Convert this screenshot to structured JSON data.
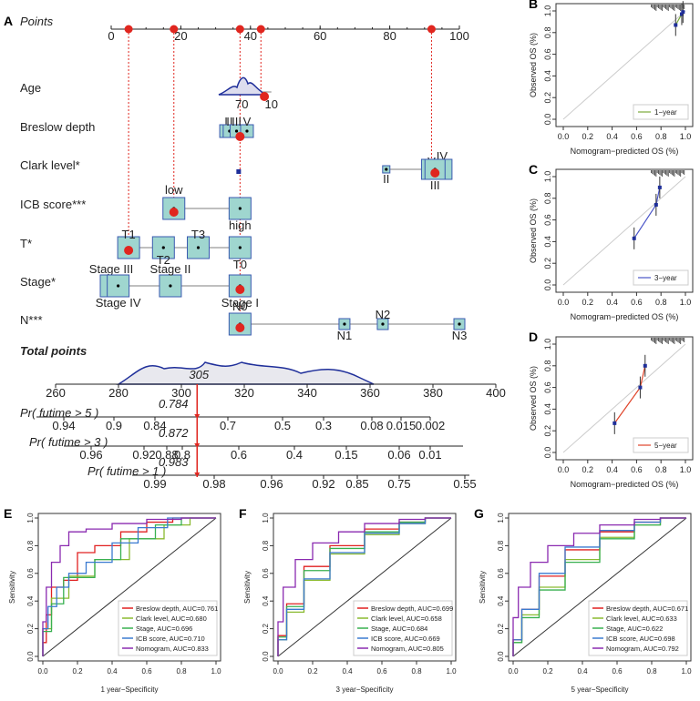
{
  "chart_data": [
    {
      "panel": "A",
      "type": "nomogram",
      "points_label": "Points",
      "points_scale": {
        "ticks": [
          0,
          20,
          40,
          60,
          80,
          100
        ]
      },
      "variables": [
        {
          "name": "Age",
          "ticks": [
            {
              "label": "70",
              "pt": 37.5
            },
            {
              "label": "10",
              "pt": 46
            }
          ]
        },
        {
          "name": "Breslow depth",
          "ticks": [
            {
              "label": "I",
              "pt": 33
            },
            {
              "label": "II",
              "pt": 34
            },
            {
              "label": "III",
              "pt": 36
            },
            {
              "label": "V",
              "pt": 39
            }
          ]
        },
        {
          "name": "Clark level*",
          "ticks": [
            {
              "label": "II",
              "pt": 79
            },
            {
              "label": "V",
              "pt": 92
            },
            {
              "label": "IV",
              "pt": 95
            },
            {
              "label": "III",
              "pt": 93
            }
          ]
        },
        {
          "name": "ICB score***",
          "ticks": [
            {
              "label": "low",
              "pt": 18
            },
            {
              "label": "high",
              "pt": 37
            }
          ]
        },
        {
          "name": "T*",
          "ticks": [
            {
              "label": "T1",
              "pt": 5
            },
            {
              "label": "T2",
              "pt": 15
            },
            {
              "label": "T3",
              "pt": 25
            },
            {
              "label": "T0",
              "pt": 37
            }
          ]
        },
        {
          "name": "Stage*",
          "ticks": [
            {
              "label": "Stage III",
              "pt": 0
            },
            {
              "label": "Stage IV",
              "pt": 2
            },
            {
              "label": "Stage II",
              "pt": 17
            },
            {
              "label": "Stage I",
              "pt": 37
            }
          ]
        },
        {
          "name": "N***",
          "ticks": [
            {
              "label": "N0",
              "pt": 37
            },
            {
              "label": "N1",
              "pt": 67
            },
            {
              "label": "N2",
              "pt": 78
            },
            {
              "label": "N3",
              "pt": 100
            }
          ]
        }
      ],
      "total_points_label": "Total points",
      "total_points": {
        "ticks": [
          260,
          280,
          300,
          320,
          340,
          360,
          380,
          400
        ],
        "value": 305,
        "value_label": "305"
      },
      "probabilities": [
        {
          "label": "Pr( futime > 5 )",
          "ticks": [
            "0.94",
            "0.9",
            "0.84",
            "0.7",
            "0.5",
            "0.3",
            "0.08",
            "0.015",
            "0.002"
          ],
          "value_label": "0.784"
        },
        {
          "label": "Pr( futime > 3 )",
          "ticks": [
            "0.96",
            "0.92",
            "0.88",
            "0.8",
            "0.6",
            "0.4",
            "0.15",
            "0.06",
            "0.01"
          ],
          "value_label": "0.872"
        },
        {
          "label": "Pr( futime > 1 )",
          "ticks": [
            "0.99",
            "0.98",
            "0.96",
            "0.92",
            "0.85",
            "0.75",
            "0.55"
          ],
          "value_label": "0.983"
        }
      ]
    },
    {
      "panel": "B",
      "type": "calibration",
      "xlabel": "Nomogram−predicted OS (%)",
      "ylabel": "Observed OS (%)",
      "legend": "1−year",
      "xlim": [
        0,
        1
      ],
      "ylim": [
        0,
        1
      ],
      "ticks": [
        "0.0",
        "0.2",
        "0.4",
        "0.6",
        "0.8",
        "1.0"
      ],
      "points": [
        [
          0.92,
          0.87
        ],
        [
          0.97,
          0.97
        ],
        [
          0.98,
          0.99
        ]
      ],
      "color": "#7aaa3a"
    },
    {
      "panel": "C",
      "type": "calibration",
      "xlabel": "Nomogram−predicted OS (%)",
      "ylabel": "Observed OS (%)",
      "legend": "3−year",
      "xlim": [
        0,
        1
      ],
      "ylim": [
        0,
        1
      ],
      "ticks": [
        "0.0",
        "0.2",
        "0.4",
        "0.6",
        "0.8",
        "1.0"
      ],
      "points": [
        [
          0.58,
          0.43
        ],
        [
          0.76,
          0.74
        ],
        [
          0.79,
          0.9
        ]
      ],
      "color": "#4a55c8"
    },
    {
      "panel": "D",
      "type": "calibration",
      "xlabel": "Nomogram−predicted OS (%)",
      "ylabel": "Observed OS (%)",
      "legend": "5−year",
      "xlim": [
        0,
        1
      ],
      "ylim": [
        0,
        1
      ],
      "ticks": [
        "0.0",
        "0.2",
        "0.4",
        "0.6",
        "0.8",
        "1.0"
      ],
      "points": [
        [
          0.42,
          0.27
        ],
        [
          0.63,
          0.6
        ],
        [
          0.67,
          0.8
        ]
      ],
      "color": "#e0442a"
    },
    {
      "panel": "E",
      "type": "roc",
      "xlabel": "1 year−Specificity",
      "ylabel": "Sensitivity",
      "ticks": [
        "0.0",
        "0.2",
        "0.4",
        "0.6",
        "0.8",
        "1.0"
      ],
      "series": [
        {
          "name": "Breslow depth, AUC=0.761",
          "color": "#e02020",
          "pts": [
            [
              0,
              0
            ],
            [
              0.02,
              0.1
            ],
            [
              0.05,
              0.3
            ],
            [
              0.12,
              0.5
            ],
            [
              0.2,
              0.55
            ],
            [
              0.3,
              0.75
            ],
            [
              0.45,
              0.8
            ],
            [
              0.6,
              0.9
            ],
            [
              0.75,
              0.97
            ],
            [
              1,
              1
            ]
          ]
        },
        {
          "name": "Clark level, AUC=0.680",
          "color": "#8aba30",
          "pts": [
            [
              0,
              0
            ],
            [
              0.05,
              0.2
            ],
            [
              0.15,
              0.42
            ],
            [
              0.3,
              0.58
            ],
            [
              0.5,
              0.7
            ],
            [
              0.7,
              0.85
            ],
            [
              0.85,
              0.95
            ],
            [
              1,
              1
            ]
          ]
        },
        {
          "name": "Stage, AUC=0.696",
          "color": "#38b050",
          "pts": [
            [
              0,
              0
            ],
            [
              0.05,
              0.18
            ],
            [
              0.12,
              0.38
            ],
            [
              0.3,
              0.57
            ],
            [
              0.45,
              0.7
            ],
            [
              0.65,
              0.85
            ],
            [
              0.8,
              0.95
            ],
            [
              1,
              1
            ]
          ]
        },
        {
          "name": "ICB score, AUC=0.710",
          "color": "#3a7ad0",
          "pts": [
            [
              0,
              0
            ],
            [
              0.03,
              0.2
            ],
            [
              0.08,
              0.36
            ],
            [
              0.15,
              0.5
            ],
            [
              0.25,
              0.6
            ],
            [
              0.4,
              0.68
            ],
            [
              0.55,
              0.82
            ],
            [
              0.72,
              0.93
            ],
            [
              1,
              1
            ]
          ]
        },
        {
          "name": "Nomogram, AUC=0.833",
          "color": "#8a2ab0",
          "pts": [
            [
              0,
              0
            ],
            [
              0.02,
              0.25
            ],
            [
              0.05,
              0.5
            ],
            [
              0.1,
              0.68
            ],
            [
              0.15,
              0.8
            ],
            [
              0.25,
              0.9
            ],
            [
              0.4,
              0.92
            ],
            [
              0.6,
              0.96
            ],
            [
              0.8,
              0.99
            ],
            [
              1,
              1
            ]
          ]
        }
      ]
    },
    {
      "panel": "F",
      "type": "roc",
      "xlabel": "3 year−Specificity",
      "ylabel": "Sensitivity",
      "ticks": [
        "0.0",
        "0.2",
        "0.4",
        "0.6",
        "0.8",
        "1.0"
      ],
      "series": [
        {
          "name": "Breslow depth, AUC=0.699",
          "color": "#e02020",
          "pts": [
            [
              0,
              0
            ],
            [
              0.05,
              0.15
            ],
            [
              0.15,
              0.38
            ],
            [
              0.3,
              0.65
            ],
            [
              0.5,
              0.8
            ],
            [
              0.7,
              0.92
            ],
            [
              0.85,
              0.97
            ],
            [
              1,
              1
            ]
          ]
        },
        {
          "name": "Clark level, AUC=0.658",
          "color": "#8aba30",
          "pts": [
            [
              0,
              0
            ],
            [
              0.05,
              0.12
            ],
            [
              0.15,
              0.32
            ],
            [
              0.3,
              0.55
            ],
            [
              0.5,
              0.74
            ],
            [
              0.7,
              0.88
            ],
            [
              0.85,
              0.96
            ],
            [
              1,
              1
            ]
          ]
        },
        {
          "name": "Stage, AUC=0.684",
          "color": "#38b050",
          "pts": [
            [
              0,
              0
            ],
            [
              0.05,
              0.14
            ],
            [
              0.15,
              0.36
            ],
            [
              0.3,
              0.62
            ],
            [
              0.5,
              0.78
            ],
            [
              0.7,
              0.9
            ],
            [
              0.85,
              0.97
            ],
            [
              1,
              1
            ]
          ]
        },
        {
          "name": "ICB score, AUC=0.669",
          "color": "#3a7ad0",
          "pts": [
            [
              0,
              0
            ],
            [
              0.05,
              0.12
            ],
            [
              0.15,
              0.34
            ],
            [
              0.3,
              0.56
            ],
            [
              0.5,
              0.75
            ],
            [
              0.7,
              0.89
            ],
            [
              0.85,
              0.96
            ],
            [
              1,
              1
            ]
          ]
        },
        {
          "name": "Nomogram, AUC=0.805",
          "color": "#8a2ab0",
          "pts": [
            [
              0,
              0
            ],
            [
              0.03,
              0.25
            ],
            [
              0.1,
              0.5
            ],
            [
              0.2,
              0.7
            ],
            [
              0.35,
              0.82
            ],
            [
              0.5,
              0.9
            ],
            [
              0.7,
              0.96
            ],
            [
              0.85,
              0.99
            ],
            [
              1,
              1
            ]
          ]
        }
      ]
    },
    {
      "panel": "G",
      "type": "roc",
      "xlabel": "5 year−Specificity",
      "ylabel": "Sensitivity",
      "ticks": [
        "0.0",
        "0.2",
        "0.4",
        "0.6",
        "0.8",
        "1.0"
      ],
      "series": [
        {
          "name": "Breslow depth, AUC=0.671",
          "color": "#e02020",
          "pts": [
            [
              0,
              0
            ],
            [
              0.05,
              0.12
            ],
            [
              0.15,
              0.34
            ],
            [
              0.3,
              0.58
            ],
            [
              0.5,
              0.77
            ],
            [
              0.7,
              0.9
            ],
            [
              0.85,
              0.97
            ],
            [
              1,
              1
            ]
          ]
        },
        {
          "name": "Clark level, AUC=0.633",
          "color": "#8aba30",
          "pts": [
            [
              0,
              0
            ],
            [
              0.05,
              0.1
            ],
            [
              0.15,
              0.3
            ],
            [
              0.3,
              0.5
            ],
            [
              0.5,
              0.7
            ],
            [
              0.7,
              0.86
            ],
            [
              0.85,
              0.95
            ],
            [
              1,
              1
            ]
          ]
        },
        {
          "name": "Stage, AUC=0.622",
          "color": "#38b050",
          "pts": [
            [
              0,
              0
            ],
            [
              0.05,
              0.1
            ],
            [
              0.15,
              0.28
            ],
            [
              0.3,
              0.48
            ],
            [
              0.5,
              0.68
            ],
            [
              0.7,
              0.85
            ],
            [
              0.85,
              0.95
            ],
            [
              1,
              1
            ]
          ]
        },
        {
          "name": "ICB score, AUC=0.698",
          "color": "#3a7ad0",
          "pts": [
            [
              0,
              0
            ],
            [
              0.05,
              0.12
            ],
            [
              0.15,
              0.34
            ],
            [
              0.3,
              0.6
            ],
            [
              0.5,
              0.79
            ],
            [
              0.7,
              0.91
            ],
            [
              0.85,
              0.97
            ],
            [
              1,
              1
            ]
          ]
        },
        {
          "name": "Nomogram, AUC=0.792",
          "color": "#8a2ab0",
          "pts": [
            [
              0,
              0
            ],
            [
              0.03,
              0.28
            ],
            [
              0.1,
              0.5
            ],
            [
              0.2,
              0.68
            ],
            [
              0.35,
              0.8
            ],
            [
              0.5,
              0.89
            ],
            [
              0.7,
              0.95
            ],
            [
              0.85,
              0.99
            ],
            [
              1,
              1
            ]
          ]
        }
      ]
    }
  ]
}
